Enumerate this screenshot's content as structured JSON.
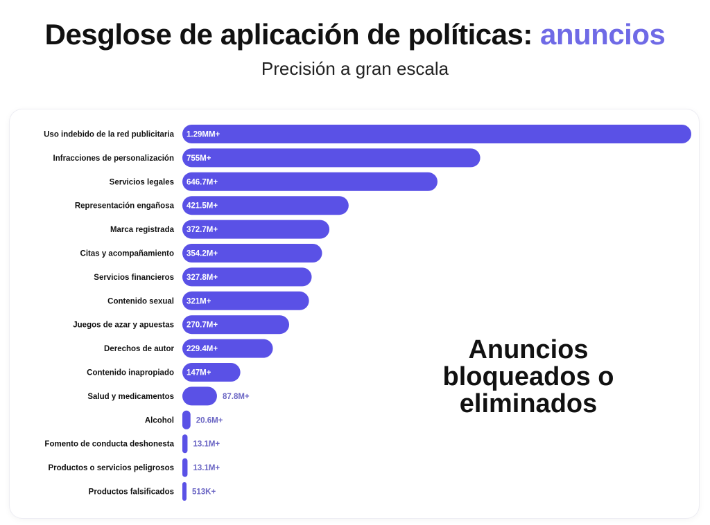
{
  "header": {
    "title_main": "Desglose de aplicación de políticas:",
    "title_accent": "anuncios",
    "subtitle": "Precisión a gran escala"
  },
  "annotation": {
    "line1": "Anuncios",
    "line2": "bloqueados o",
    "line3": "eliminados"
  },
  "colors": {
    "bar": "#5a51e6",
    "accent_text": "#6f6ae6",
    "outside_label": "#6b66c4",
    "category_text": "#111111"
  },
  "chart_data": {
    "type": "bar",
    "orientation": "horizontal",
    "title": "",
    "xlabel": "",
    "ylabel": "",
    "categories": [
      "Uso indebido de la red publicitaria",
      "Infracciones de personalización",
      "Servicios legales",
      "Representación engañosa",
      "Marca registrada",
      "Citas y acompañamiento",
      "Servicios financieros",
      "Contenido sexual",
      "Juegos de azar y apuestas",
      "Derechos de autor",
      "Contenido inapropiado",
      "Salud y medicamentos",
      "Alcohol",
      "Fomento de conducta deshonesta",
      "Productos o servicios peligrosos",
      "Productos falsificados"
    ],
    "values": [
      1290,
      755,
      646.7,
      421.5,
      372.7,
      354.2,
      327.8,
      321,
      270.7,
      229.4,
      147,
      87.8,
      20.6,
      13.1,
      13.1,
      0.513
    ],
    "unit": "millones",
    "labels": [
      "1.29MM+",
      "755M+",
      "646.7M+",
      "421.5M+",
      "372.7M+",
      "354.2M+",
      "327.8M+",
      "321M+",
      "270.7M+",
      "229.4M+",
      "147M+",
      "87.8M+",
      "20.6M+",
      "13.1M+",
      "13.1M+",
      "513K+"
    ],
    "xlim": [
      0,
      1290
    ],
    "grid": false,
    "legend": "none"
  }
}
